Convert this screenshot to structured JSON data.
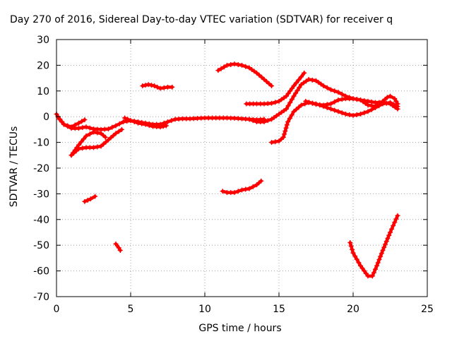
{
  "chart_data": {
    "type": "scatter",
    "title": "Day 270 of 2016, Sidereal Day-to-day VTEC variation (SDTVAR) for receiver q",
    "xlabel": "GPS time / hours",
    "ylabel": "SDTVAR / TECUs",
    "xlim": [
      0,
      25
    ],
    "ylim": [
      -70,
      30
    ],
    "xticks": [
      "0",
      "5",
      "10",
      "15",
      "20",
      "25"
    ],
    "yticks": [
      "30",
      "20",
      "10",
      "0",
      "-10",
      "-20",
      "-30",
      "-40",
      "-50",
      "-60",
      "-70"
    ],
    "grid": true,
    "marker_color": "#ff0000",
    "series": [
      {
        "points": [
          [
            0.0,
            1.0
          ],
          [
            0.2,
            -1.0
          ],
          [
            0.5,
            -3.0
          ],
          [
            1.0,
            -4.5
          ],
          [
            1.5,
            -4.5
          ],
          [
            2.0,
            -4.0
          ],
          [
            2.5,
            -4.8
          ],
          [
            3.0,
            -5.0
          ],
          [
            3.5,
            -4.8
          ],
          [
            4.0,
            -3.5
          ],
          [
            4.5,
            -2.0
          ],
          [
            5.0,
            -1.5
          ],
          [
            5.5,
            -2.0
          ],
          [
            6.0,
            -2.5
          ],
          [
            6.5,
            -3.0
          ],
          [
            7.0,
            -3.0
          ],
          [
            7.5,
            -2.0
          ],
          [
            8.0,
            -1.0
          ],
          [
            8.5,
            -0.8
          ],
          [
            9.0,
            -0.8
          ],
          [
            10.0,
            -0.5
          ],
          [
            11.0,
            -0.5
          ],
          [
            11.5,
            -0.5
          ],
          [
            12.0,
            -0.6
          ],
          [
            12.5,
            -0.8
          ],
          [
            13.0,
            -1.0
          ],
          [
            13.5,
            -1.2
          ],
          [
            14.0,
            -1.0
          ]
        ]
      },
      {
        "points": [
          [
            0.1,
            0.0
          ],
          [
            0.5,
            -3.0
          ],
          [
            1.0,
            -4.0
          ],
          [
            1.5,
            -2.5
          ],
          [
            1.9,
            -1.2
          ]
        ]
      },
      {
        "points": [
          [
            4.6,
            -0.5
          ],
          [
            5.0,
            -1.5
          ],
          [
            5.5,
            -2.5
          ],
          [
            6.0,
            -3.0
          ],
          [
            6.5,
            -3.8
          ],
          [
            7.0,
            -4.0
          ],
          [
            7.4,
            -3.5
          ]
        ]
      },
      {
        "points": [
          [
            1.0,
            -15.0
          ],
          [
            1.5,
            -12.5
          ],
          [
            2.0,
            -12.0
          ],
          [
            2.5,
            -12.0
          ],
          [
            3.0,
            -11.5
          ],
          [
            3.5,
            -9.0
          ],
          [
            4.0,
            -6.5
          ],
          [
            4.4,
            -5.0
          ]
        ]
      },
      {
        "points": [
          [
            1.0,
            -15.0
          ],
          [
            1.5,
            -11.0
          ],
          [
            2.0,
            -7.5
          ],
          [
            2.5,
            -6.0
          ],
          [
            3.0,
            -6.5
          ],
          [
            3.3,
            -8.0
          ]
        ]
      },
      {
        "points": [
          [
            1.9,
            -33.0
          ],
          [
            2.3,
            -32.0
          ],
          [
            2.6,
            -31.0
          ]
        ]
      },
      {
        "points": [
          [
            4.0,
            -49.5
          ],
          [
            4.2,
            -51.0
          ],
          [
            4.3,
            -52.0
          ]
        ]
      },
      {
        "points": [
          [
            5.8,
            12.0
          ],
          [
            6.2,
            12.5
          ],
          [
            6.6,
            12.0
          ],
          [
            7.0,
            11.0
          ],
          [
            7.5,
            11.5
          ],
          [
            7.8,
            11.5
          ]
        ]
      },
      {
        "points": [
          [
            10.9,
            18.0
          ],
          [
            11.5,
            20.0
          ],
          [
            12.0,
            20.5
          ],
          [
            12.5,
            20.0
          ],
          [
            13.0,
            19.0
          ],
          [
            13.5,
            17.0
          ],
          [
            14.0,
            14.5
          ],
          [
            14.5,
            12.0
          ]
        ]
      },
      {
        "points": [
          [
            11.2,
            -29.0
          ],
          [
            11.5,
            -29.5
          ],
          [
            12.0,
            -29.5
          ],
          [
            12.5,
            -28.5
          ],
          [
            13.0,
            -28.0
          ],
          [
            13.5,
            -26.5
          ],
          [
            13.8,
            -25.0
          ]
        ]
      },
      {
        "points": [
          [
            12.8,
            5.0
          ],
          [
            13.5,
            5.0
          ],
          [
            14.0,
            5.0
          ],
          [
            14.5,
            5.2
          ],
          [
            15.0,
            6.0
          ],
          [
            15.5,
            8.0
          ],
          [
            16.0,
            12.0
          ],
          [
            16.5,
            15.5
          ],
          [
            16.7,
            17.0
          ]
        ]
      },
      {
        "points": [
          [
            13.0,
            -1.0
          ],
          [
            13.5,
            -2.0
          ],
          [
            14.0,
            -2.0
          ],
          [
            14.5,
            -1.0
          ],
          [
            15.0,
            1.0
          ],
          [
            15.5,
            3.0
          ],
          [
            16.0,
            8.0
          ],
          [
            16.5,
            12.5
          ],
          [
            17.0,
            14.5
          ],
          [
            17.5,
            14.0
          ],
          [
            18.0,
            12.0
          ],
          [
            18.5,
            10.5
          ],
          [
            19.0,
            9.5
          ],
          [
            19.5,
            8.0
          ],
          [
            20.0,
            7.0
          ],
          [
            20.5,
            6.5
          ],
          [
            21.0,
            6.0
          ],
          [
            21.5,
            5.5
          ],
          [
            22.0,
            5.5
          ],
          [
            22.5,
            5.0
          ],
          [
            23.0,
            3.0
          ]
        ]
      },
      {
        "points": [
          [
            14.5,
            -10.0
          ],
          [
            15.0,
            -9.5
          ],
          [
            15.3,
            -8.0
          ],
          [
            15.6,
            -2.0
          ],
          [
            16.0,
            2.0
          ],
          [
            16.5,
            4.5
          ],
          [
            17.0,
            5.5
          ],
          [
            17.5,
            5.0
          ],
          [
            18.0,
            4.0
          ],
          [
            18.5,
            3.0
          ],
          [
            19.0,
            2.0
          ],
          [
            19.5,
            1.0
          ],
          [
            20.0,
            0.5
          ],
          [
            20.5,
            1.0
          ],
          [
            21.0,
            2.0
          ],
          [
            21.5,
            3.5
          ],
          [
            22.0,
            5.0
          ],
          [
            22.5,
            5.5
          ],
          [
            23.0,
            4.0
          ]
        ]
      },
      {
        "points": [
          [
            16.8,
            6.0
          ],
          [
            17.5,
            4.8
          ],
          [
            18.0,
            4.5
          ],
          [
            18.5,
            5.0
          ],
          [
            19.0,
            6.5
          ],
          [
            19.5,
            7.0
          ],
          [
            20.0,
            7.0
          ],
          [
            20.5,
            6.5
          ],
          [
            21.0,
            4.5
          ],
          [
            21.5,
            4.0
          ],
          [
            22.0,
            6.0
          ],
          [
            22.3,
            7.5
          ],
          [
            22.5,
            8.0
          ],
          [
            22.8,
            7.0
          ],
          [
            23.0,
            5.0
          ]
        ]
      },
      {
        "points": [
          [
            19.8,
            -49.0
          ],
          [
            20.0,
            -53.0
          ],
          [
            20.5,
            -58.0
          ],
          [
            21.0,
            -62.0
          ],
          [
            21.3,
            -62.0
          ],
          [
            21.6,
            -58.0
          ],
          [
            22.0,
            -52.0
          ],
          [
            22.5,
            -45.0
          ],
          [
            23.0,
            -38.5
          ]
        ]
      }
    ]
  }
}
